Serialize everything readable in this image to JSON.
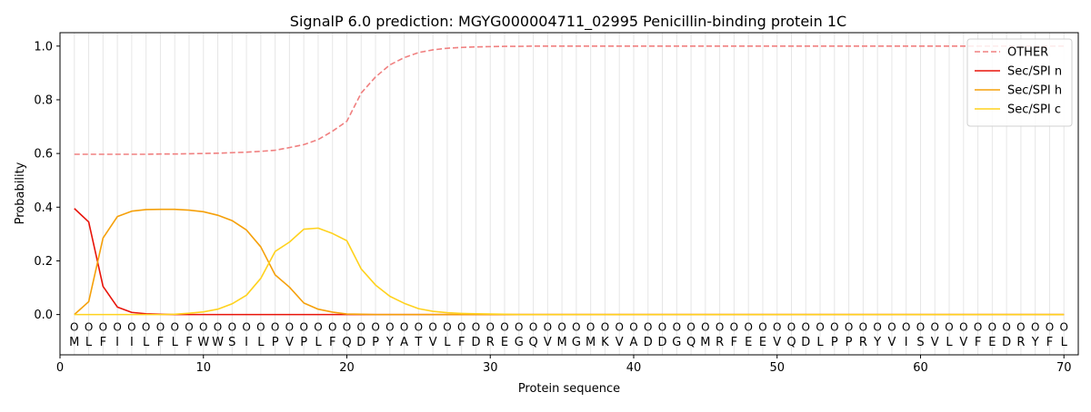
{
  "chart_data": {
    "type": "line",
    "title": "SignalP 6.0 prediction: MGYG000004711_02995 Penicillin-binding protein 1C",
    "xlabel": "Protein sequence",
    "ylabel": "Probability",
    "xlim": [
      0,
      71
    ],
    "ylim": [
      -0.15,
      1.05
    ],
    "x_ticks": [
      0,
      10,
      20,
      30,
      40,
      50,
      60,
      70
    ],
    "y_ticks": [
      0.0,
      0.2,
      0.4,
      0.6,
      0.8,
      1.0
    ],
    "grid": "vertical lines at each residue position",
    "legend_position": "top-right",
    "sequence": [
      "M",
      "L",
      "F",
      "I",
      "I",
      "L",
      "F",
      "L",
      "F",
      "W",
      "W",
      "S",
      "I",
      "L",
      "P",
      "V",
      "P",
      "L",
      "F",
      "Q",
      "D",
      "P",
      "Y",
      "A",
      "T",
      "V",
      "L",
      "F",
      "D",
      "R",
      "E",
      "G",
      "Q",
      "V",
      "M",
      "G",
      "M",
      "K",
      "V",
      "A",
      "D",
      "D",
      "G",
      "Q",
      "M",
      "R",
      "F",
      "E",
      "E",
      "V",
      "Q",
      "D",
      "L",
      "P",
      "P",
      "R",
      "Y",
      "V",
      "I",
      "S",
      "V",
      "L",
      "V",
      "F",
      "E",
      "D",
      "R",
      "Y",
      "F",
      "L"
    ],
    "region_labels": [
      "O",
      "O",
      "O",
      "O",
      "O",
      "O",
      "O",
      "O",
      "O",
      "O",
      "O",
      "O",
      "O",
      "O",
      "O",
      "O",
      "O",
      "O",
      "O",
      "O",
      "O",
      "O",
      "O",
      "O",
      "O",
      "O",
      "O",
      "O",
      "O",
      "O",
      "O",
      "O",
      "O",
      "O",
      "O",
      "O",
      "O",
      "O",
      "O",
      "O",
      "O",
      "O",
      "O",
      "O",
      "O",
      "O",
      "O",
      "O",
      "O",
      "O",
      "O",
      "O",
      "O",
      "O",
      "O",
      "O",
      "O",
      "O",
      "O",
      "O",
      "O",
      "O",
      "O",
      "O",
      "O",
      "O",
      "O",
      "O",
      "O",
      "O"
    ],
    "series": [
      {
        "name": "OTHER",
        "color": "#f08080",
        "dashed": true,
        "values": [
          0.597,
          0.597,
          0.597,
          0.597,
          0.597,
          0.597,
          0.598,
          0.598,
          0.599,
          0.6,
          0.601,
          0.603,
          0.605,
          0.608,
          0.612,
          0.622,
          0.633,
          0.652,
          0.683,
          0.72,
          0.825,
          0.885,
          0.93,
          0.957,
          0.976,
          0.986,
          0.992,
          0.995,
          0.997,
          0.998,
          0.999,
          0.999,
          1.0,
          1.0,
          1.0,
          1.0,
          1.0,
          1.0,
          1.0,
          1.0,
          1.0,
          1.0,
          1.0,
          1.0,
          1.0,
          1.0,
          1.0,
          1.0,
          1.0,
          1.0,
          1.0,
          1.0,
          1.0,
          1.0,
          1.0,
          1.0,
          1.0,
          1.0,
          1.0,
          1.0,
          1.0,
          1.0,
          1.0,
          1.0,
          1.0,
          1.0,
          1.0,
          1.0,
          1.0,
          1.0
        ]
      },
      {
        "name": "Sec/SPI n",
        "color": "#e8140a",
        "dashed": false,
        "values": [
          0.395,
          0.345,
          0.105,
          0.028,
          0.008,
          0.003,
          0.001,
          0,
          0,
          0,
          0,
          0,
          0,
          0,
          0,
          0,
          0,
          0,
          0,
          0,
          0,
          0,
          0,
          0,
          0,
          0,
          0,
          0,
          0,
          0,
          0,
          0,
          0,
          0,
          0,
          0,
          0,
          0,
          0,
          0,
          0,
          0,
          0,
          0,
          0,
          0,
          0,
          0,
          0,
          0,
          0,
          0,
          0,
          0,
          0,
          0,
          0,
          0,
          0,
          0,
          0,
          0,
          0,
          0,
          0,
          0,
          0,
          0,
          0,
          0
        ]
      },
      {
        "name": "Sec/SPI h",
        "color": "#f5a00a",
        "dashed": false,
        "values": [
          0.0,
          0.048,
          0.285,
          0.365,
          0.385,
          0.391,
          0.392,
          0.392,
          0.389,
          0.383,
          0.37,
          0.35,
          0.315,
          0.252,
          0.148,
          0.102,
          0.043,
          0.02,
          0.009,
          0.002,
          0.001,
          0,
          0,
          0,
          0,
          0,
          0,
          0,
          0,
          0,
          0,
          0,
          0,
          0,
          0,
          0,
          0,
          0,
          0,
          0,
          0,
          0,
          0,
          0,
          0,
          0,
          0,
          0,
          0,
          0,
          0,
          0,
          0,
          0,
          0,
          0,
          0,
          0,
          0,
          0,
          0,
          0,
          0,
          0,
          0,
          0,
          0,
          0,
          0,
          0
        ]
      },
      {
        "name": "Sec/SPI c",
        "color": "#ffd21e",
        "dashed": false,
        "values": [
          0.0,
          0.0,
          0.0,
          0.0,
          0.0,
          0.0,
          0.0,
          0.001,
          0.005,
          0.01,
          0.02,
          0.04,
          0.072,
          0.135,
          0.235,
          0.27,
          0.318,
          0.322,
          0.302,
          0.275,
          0.17,
          0.11,
          0.068,
          0.042,
          0.022,
          0.012,
          0.007,
          0.004,
          0.003,
          0.002,
          0.001,
          0,
          0,
          0,
          0,
          0,
          0,
          0,
          0,
          0,
          0,
          0,
          0,
          0,
          0,
          0,
          0,
          0,
          0,
          0,
          0,
          0,
          0,
          0,
          0,
          0,
          0,
          0,
          0,
          0,
          0,
          0,
          0,
          0,
          0,
          0,
          0,
          0,
          0,
          0
        ]
      }
    ]
  }
}
